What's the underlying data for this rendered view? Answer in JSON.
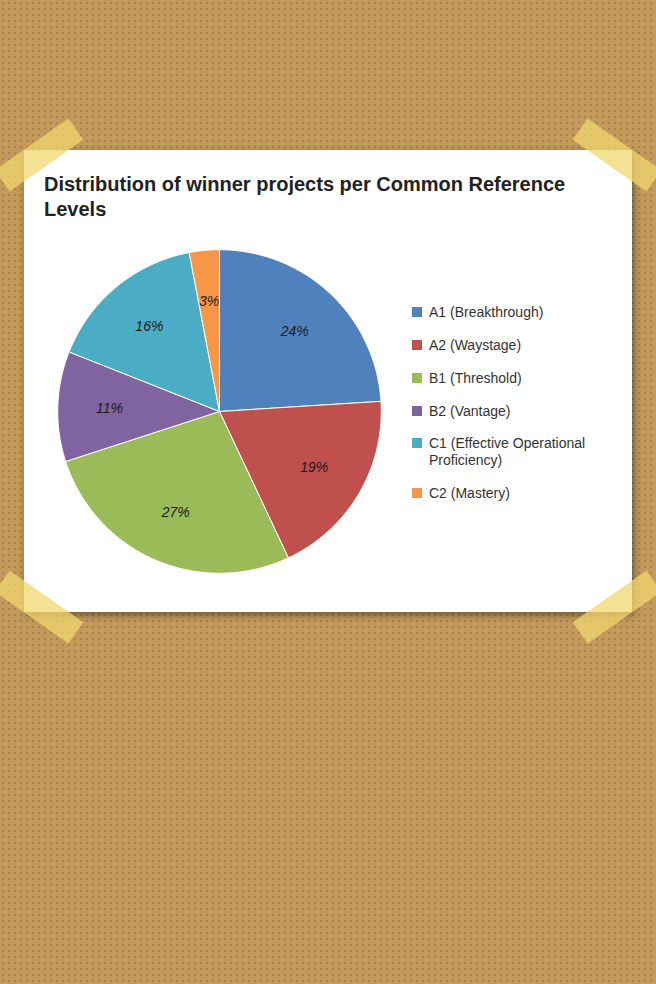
{
  "chart_data": {
    "type": "pie",
    "title": "Distribution of winner projects per Common Reference Levels",
    "categories": [
      "A1 (Breakthrough)",
      "A2 (Waystage)",
      "B1 (Threshold)",
      "B2 (Vantage)",
      "C1 (Effective Operational Proficiency)",
      "C2 (Mastery)"
    ],
    "values": [
      24,
      19,
      27,
      11,
      16,
      3
    ],
    "value_labels": [
      "24%",
      "19%",
      "27%",
      "11%",
      "16%",
      "3%"
    ],
    "colors": [
      "#4f81bd",
      "#c0504d",
      "#9bbb59",
      "#8064a2",
      "#4bacc6",
      "#f79646"
    ],
    "data_labels": true,
    "legend": "right"
  }
}
